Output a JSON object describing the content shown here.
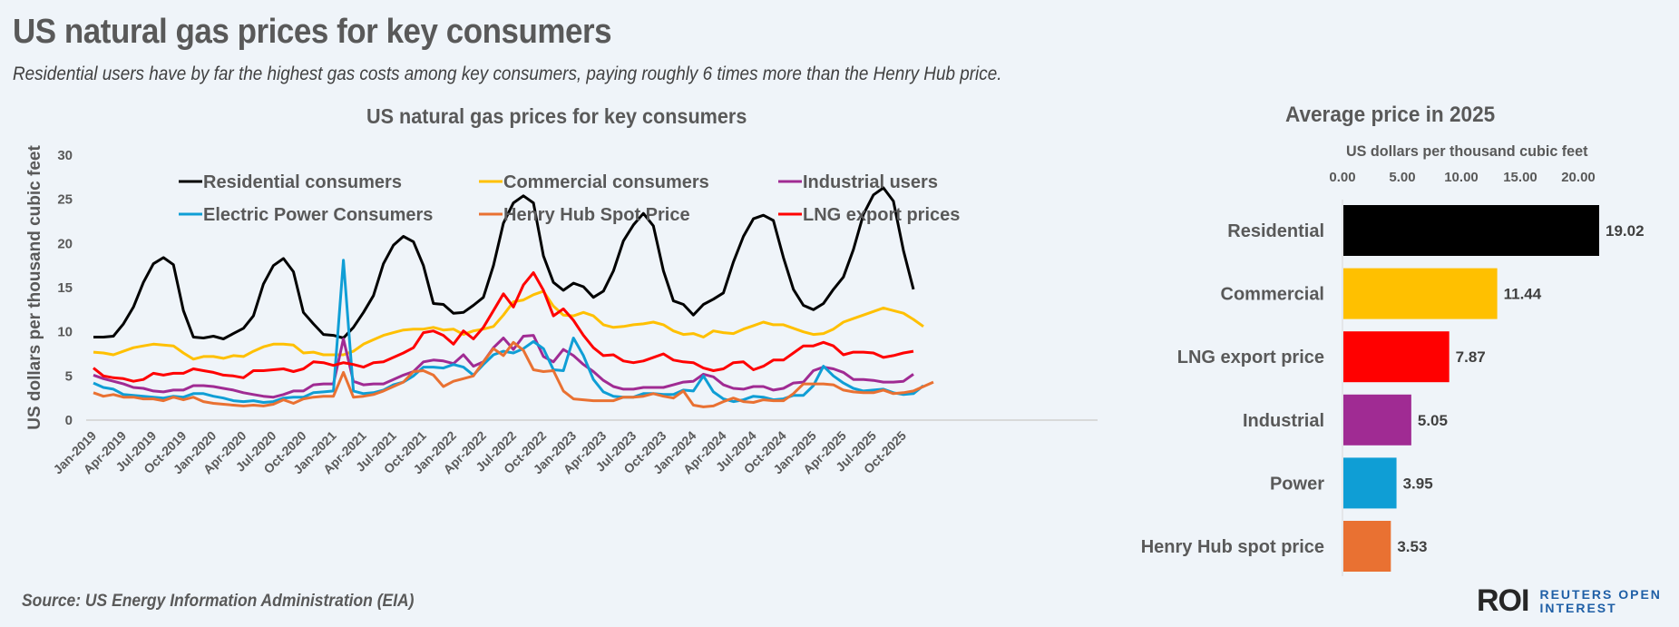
{
  "header": {
    "title": "US natural gas prices for key consumers",
    "subtitle": "Residential users have by far the highest gas costs among key consumers, paying roughly 6 times more than the Henry Hub price."
  },
  "footer": {
    "source": "Source:  US Energy Information Administration (EIA)",
    "logo_mark": "ROI",
    "logo_line1": "REUTERS OPEN",
    "logo_line2": "INTEREST"
  },
  "chart_data": [
    {
      "type": "line",
      "title": "US natural gas prices for key consumers",
      "xlabel": "",
      "ylabel": "US dollars per thousand cubic feet",
      "ylim": [
        0,
        30
      ],
      "yticks": [
        0,
        5,
        10,
        15,
        20,
        25,
        30
      ],
      "grid": false,
      "legend_position": "top",
      "x_start": "Jan-2019",
      "x_frequency": "monthly",
      "x_tick_labels": [
        "Jan-2019",
        "Apr-2019",
        "Jul-2019",
        "Oct-2019",
        "Jan-2020",
        "Apr-2020",
        "Jul-2020",
        "Oct-2020",
        "Jan-2021",
        "Apr-2021",
        "Jul-2021",
        "Oct-2021",
        "Jan-2022",
        "Apr-2022",
        "Jul-2022",
        "Oct-2022",
        "Jan-2023",
        "Apr-2023",
        "Jul-2023",
        "Oct-2023",
        "Jan-2024",
        "Apr-2024",
        "Jul-2024",
        "Oct-2024",
        "Jan-2025",
        "Apr-2025",
        "Jul-2025",
        "Oct-2025"
      ],
      "series": [
        {
          "name": "Residential consumers",
          "color": "#000000",
          "values": [
            9.4,
            9.4,
            9.5,
            10.9,
            12.8,
            15.6,
            17.7,
            18.4,
            17.6,
            12.4,
            9.4,
            9.3,
            9.5,
            9.2,
            9.8,
            10.4,
            11.8,
            15.4,
            17.5,
            18.3,
            16.8,
            12.2,
            10.9,
            9.7,
            9.6,
            9.3,
            10.5,
            12.2,
            14.1,
            17.7,
            19.8,
            20.8,
            20.2,
            17.5,
            13.2,
            13.1,
            12.1,
            12.2,
            13.0,
            13.9,
            17.5,
            22.3,
            24.6,
            25.4,
            24.6,
            18.6,
            15.6,
            14.7,
            15.5,
            15.1,
            13.9,
            14.6,
            16.9,
            20.3,
            22.1,
            23.4,
            22.0,
            16.9,
            13.5,
            13.1,
            11.9,
            13.1,
            13.7,
            14.4,
            17.9,
            20.8,
            22.8,
            23.2,
            22.6,
            18.4,
            14.8,
            13.0,
            12.5,
            13.2,
            14.8,
            16.2,
            19.3,
            23.3,
            25.5,
            26.3,
            24.8,
            19.2,
            14.8
          ]
        },
        {
          "name": "Commercial consumers",
          "color": "#ffc000",
          "values": [
            7.7,
            7.6,
            7.4,
            7.8,
            8.2,
            8.4,
            8.6,
            8.5,
            8.4,
            7.6,
            6.9,
            7.2,
            7.2,
            7.0,
            7.3,
            7.2,
            7.8,
            8.3,
            8.6,
            8.6,
            8.5,
            7.6,
            7.7,
            7.4,
            7.4,
            7.4,
            7.8,
            8.6,
            9.1,
            9.6,
            9.9,
            10.2,
            10.3,
            10.3,
            10.5,
            10.2,
            10.3,
            9.7,
            10.1,
            10.3,
            10.6,
            11.9,
            13.4,
            13.6,
            14.2,
            14.6,
            12.9,
            11.9,
            11.8,
            12.2,
            11.8,
            10.8,
            10.5,
            10.6,
            10.8,
            10.9,
            11.1,
            10.8,
            10.1,
            9.7,
            9.8,
            9.4,
            10.1,
            9.9,
            9.8,
            10.3,
            10.7,
            11.1,
            10.8,
            10.8,
            10.4,
            10.0,
            9.7,
            9.8,
            10.3,
            11.1,
            11.5,
            11.9,
            12.3,
            12.7,
            12.4,
            12.1,
            11.4,
            10.6
          ]
        },
        {
          "name": "Industrial users",
          "color": "#a02b93",
          "values": [
            5.1,
            4.7,
            4.4,
            4.1,
            3.7,
            3.6,
            3.3,
            3.2,
            3.4,
            3.4,
            3.9,
            3.9,
            3.8,
            3.6,
            3.4,
            3.1,
            2.9,
            2.7,
            2.6,
            2.9,
            3.3,
            3.3,
            4.0,
            4.1,
            4.1,
            9.2,
            4.4,
            4.0,
            4.1,
            4.1,
            4.6,
            5.1,
            5.5,
            6.6,
            6.8,
            6.7,
            6.4,
            7.4,
            6.1,
            6.6,
            8.2,
            9.3,
            8.0,
            9.5,
            9.6,
            7.2,
            6.6,
            8.0,
            7.3,
            6.3,
            5.5,
            4.5,
            3.8,
            3.5,
            3.5,
            3.7,
            3.7,
            3.7,
            4.0,
            4.3,
            4.4,
            5.2,
            4.9,
            4.0,
            3.6,
            3.5,
            3.8,
            3.8,
            3.4,
            3.6,
            4.2,
            4.3,
            5.6,
            6.0,
            5.8,
            5.4,
            4.6,
            4.6,
            4.5,
            4.3,
            4.3,
            4.4,
            5.2
          ]
        },
        {
          "name": "Electric Power Consumers",
          "color": "#0f9ed5",
          "values": [
            4.2,
            3.7,
            3.5,
            2.9,
            2.8,
            2.7,
            2.6,
            2.5,
            2.7,
            2.6,
            3.0,
            3.0,
            2.7,
            2.5,
            2.2,
            2.1,
            2.2,
            2.0,
            2.1,
            2.5,
            2.6,
            2.6,
            3.1,
            3.2,
            3.3,
            18.1,
            3.3,
            3.0,
            3.1,
            3.4,
            4.0,
            4.3,
            5.0,
            6.0,
            6.0,
            5.9,
            6.3,
            6.0,
            5.1,
            6.3,
            7.4,
            7.8,
            7.6,
            8.1,
            8.9,
            8.1,
            5.7,
            5.6,
            9.3,
            7.3,
            4.6,
            3.2,
            2.7,
            2.6,
            2.6,
            3.0,
            3.0,
            2.9,
            2.9,
            3.4,
            3.3,
            5.0,
            3.2,
            2.4,
            2.1,
            2.3,
            2.7,
            2.6,
            2.3,
            2.4,
            2.8,
            2.8,
            3.9,
            6.1,
            5.0,
            4.2,
            3.6,
            3.3,
            3.4,
            3.5,
            3.1,
            2.9,
            3.0,
            3.9
          ]
        },
        {
          "name": "Henry Hub Spot Price",
          "color": "#e97132",
          "values": [
            3.1,
            2.7,
            2.9,
            2.6,
            2.6,
            2.4,
            2.4,
            2.2,
            2.6,
            2.3,
            2.6,
            2.1,
            1.9,
            1.8,
            1.7,
            1.6,
            1.7,
            1.6,
            1.8,
            2.3,
            1.9,
            2.4,
            2.6,
            2.7,
            2.7,
            5.4,
            2.6,
            2.7,
            2.9,
            3.3,
            3.8,
            4.3,
            5.5,
            5.6,
            5.1,
            3.8,
            4.4,
            4.7,
            5.0,
            6.6,
            8.1,
            7.3,
            8.8,
            7.9,
            5.7,
            5.5,
            5.6,
            3.3,
            2.4,
            2.3,
            2.2,
            2.2,
            2.2,
            2.6,
            2.6,
            2.7,
            3.0,
            2.7,
            2.5,
            3.3,
            1.7,
            1.5,
            1.6,
            2.1,
            2.5,
            2.1,
            2.0,
            2.3,
            2.2,
            2.2,
            3.0,
            4.1,
            4.1,
            4.1,
            4.0,
            3.4,
            3.2,
            3.1,
            3.1,
            3.4,
            3.0,
            3.1,
            3.3,
            3.8,
            4.3
          ]
        },
        {
          "name": "LNG export prices",
          "color": "#ff0000",
          "values": [
            5.9,
            5.0,
            4.8,
            4.7,
            4.4,
            4.6,
            5.3,
            5.1,
            5.3,
            5.3,
            5.8,
            5.6,
            5.4,
            5.1,
            5.0,
            4.8,
            5.6,
            5.6,
            5.7,
            5.8,
            5.5,
            5.8,
            6.6,
            6.5,
            6.2,
            6.5,
            6.3,
            6.0,
            6.5,
            6.6,
            7.1,
            7.6,
            8.2,
            9.9,
            10.1,
            9.6,
            8.6,
            10.1,
            9.2,
            10.5,
            12.4,
            14.3,
            12.8,
            15.3,
            16.7,
            14.7,
            11.8,
            12.6,
            11.3,
            9.6,
            8.2,
            7.3,
            7.4,
            6.7,
            6.5,
            6.7,
            7.1,
            7.5,
            6.8,
            6.6,
            6.5,
            5.9,
            5.6,
            5.8,
            6.5,
            6.6,
            5.7,
            6.1,
            6.8,
            6.8,
            7.6,
            8.4,
            8.4,
            8.8,
            8.4,
            7.4,
            7.7,
            7.7,
            7.6,
            7.1,
            7.3,
            7.6,
            7.8
          ]
        }
      ]
    },
    {
      "type": "bar",
      "orientation": "horizontal",
      "title": "Average price in 2025",
      "xlabel": "US dollars per thousand cubic feet",
      "xlim": [
        0,
        20
      ],
      "xticks": [
        "0.00",
        "5.00",
        "10.00",
        "15.00",
        "20.00"
      ],
      "xaxis_position": "top",
      "categories": [
        "Residential",
        "Commercial",
        "LNG export price",
        "Industrial",
        "Power",
        "Henry Hub spot price"
      ],
      "values": [
        19.02,
        11.44,
        7.87,
        5.05,
        3.95,
        3.53
      ],
      "labels": [
        "19.02",
        "11.44",
        "7.87",
        "5.05",
        "3.95",
        "3.53"
      ],
      "colors": [
        "#000000",
        "#ffc000",
        "#ff0000",
        "#a02b93",
        "#0f9ed5",
        "#e97132"
      ]
    }
  ]
}
